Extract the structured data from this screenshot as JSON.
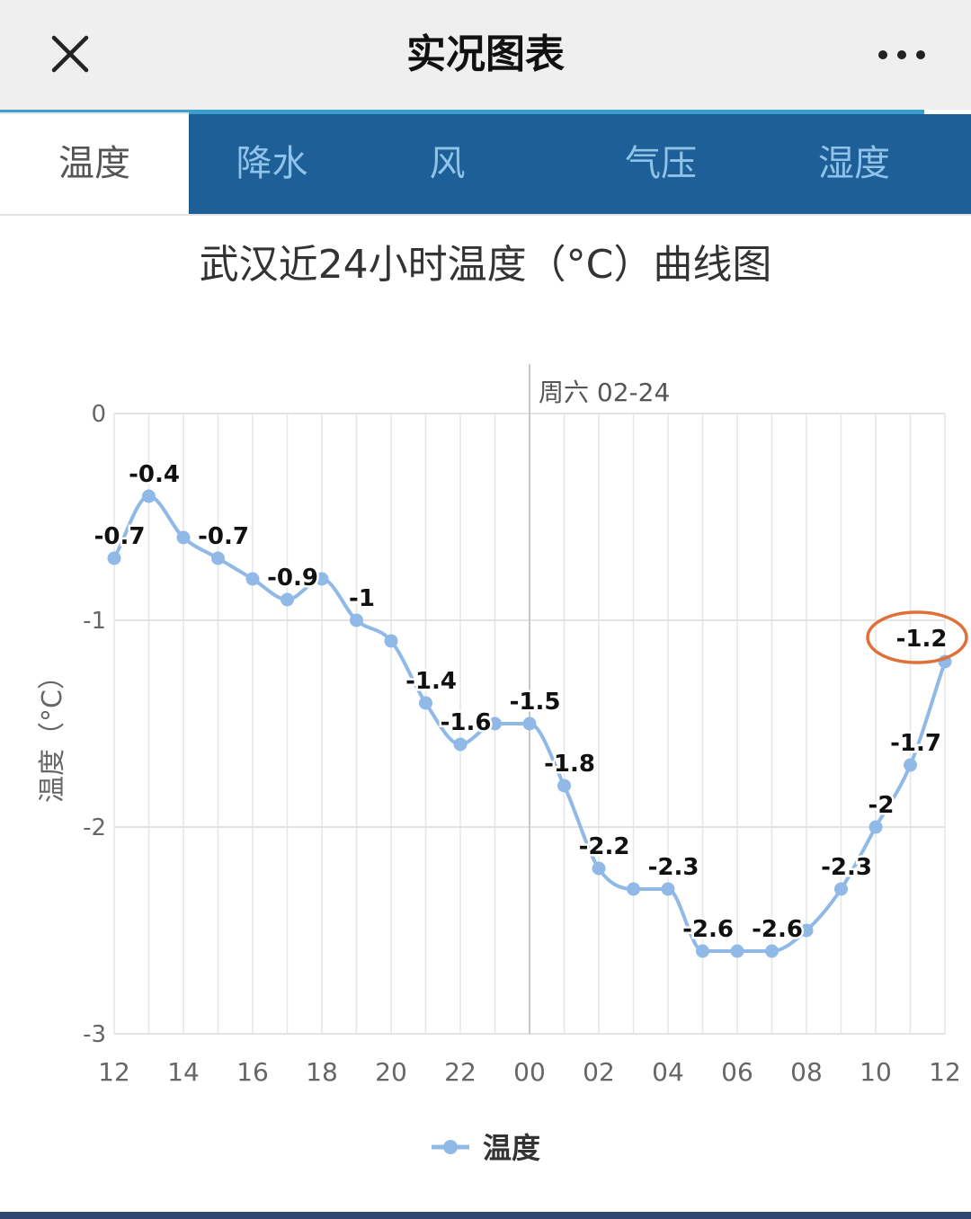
{
  "header": {
    "title": "实况图表",
    "close_icon": "close-icon",
    "more_icon": "more-horizontal-icon"
  },
  "tabs": [
    {
      "label": "温度",
      "active": true
    },
    {
      "label": "降水",
      "active": false
    },
    {
      "label": "风",
      "active": false
    },
    {
      "label": "气压",
      "active": false
    },
    {
      "label": "湿度",
      "active": false
    }
  ],
  "colors": {
    "tab_bar": "#1d5f96",
    "accent": "#3a9fcf",
    "series": "#90b9e8",
    "highlight_ring": "#e0703a"
  },
  "chart_data": {
    "type": "line",
    "title": "武汉近24小时温度（°C）曲线图",
    "ylabel": "温度（°C）",
    "xlabel": "",
    "ylim": [
      -3,
      0
    ],
    "yticks": [
      "0",
      "-1",
      "-2",
      "-3"
    ],
    "xticks": [
      "12",
      "14",
      "16",
      "18",
      "20",
      "22",
      "00",
      "02",
      "04",
      "06",
      "08",
      "10",
      "12"
    ],
    "day_marker": {
      "at": "00",
      "label": "周六 02-24"
    },
    "grid": true,
    "legend": "bottom-center",
    "x": [
      "12",
      "13",
      "14",
      "15",
      "16",
      "17",
      "18",
      "19",
      "20",
      "21",
      "22",
      "23",
      "00",
      "01",
      "02",
      "03",
      "04",
      "05",
      "06",
      "07",
      "08",
      "09",
      "10",
      "11",
      "12"
    ],
    "series": [
      {
        "name": "温度",
        "values": [
          -0.7,
          -0.4,
          -0.6,
          -0.7,
          -0.8,
          -0.9,
          -0.8,
          -1,
          -1.1,
          -1.4,
          -1.6,
          -1.5,
          -1.5,
          -1.8,
          -2.2,
          -2.3,
          -2.3,
          -2.6,
          -2.6,
          -2.6,
          -2.5,
          -2.3,
          -2,
          -1.7,
          -1.2
        ]
      }
    ],
    "data_labels": [
      {
        "index": 0,
        "text": "-0.7"
      },
      {
        "index": 1,
        "text": "-0.4"
      },
      {
        "index": 3,
        "text": "-0.7"
      },
      {
        "index": 5,
        "text": "-0.9"
      },
      {
        "index": 7,
        "text": "-1"
      },
      {
        "index": 9,
        "text": "-1.4"
      },
      {
        "index": 10,
        "text": "-1.6"
      },
      {
        "index": 12,
        "text": "-1.5"
      },
      {
        "index": 13,
        "text": "-1.8"
      },
      {
        "index": 14,
        "text": "-2.2"
      },
      {
        "index": 16,
        "text": "-2.3"
      },
      {
        "index": 17,
        "text": "-2.6"
      },
      {
        "index": 19,
        "text": "-2.6"
      },
      {
        "index": 21,
        "text": "-2.3"
      },
      {
        "index": 22,
        "text": "-2"
      },
      {
        "index": 23,
        "text": "-1.7"
      },
      {
        "index": 24,
        "text": "-1.2",
        "highlighted": true
      }
    ]
  }
}
